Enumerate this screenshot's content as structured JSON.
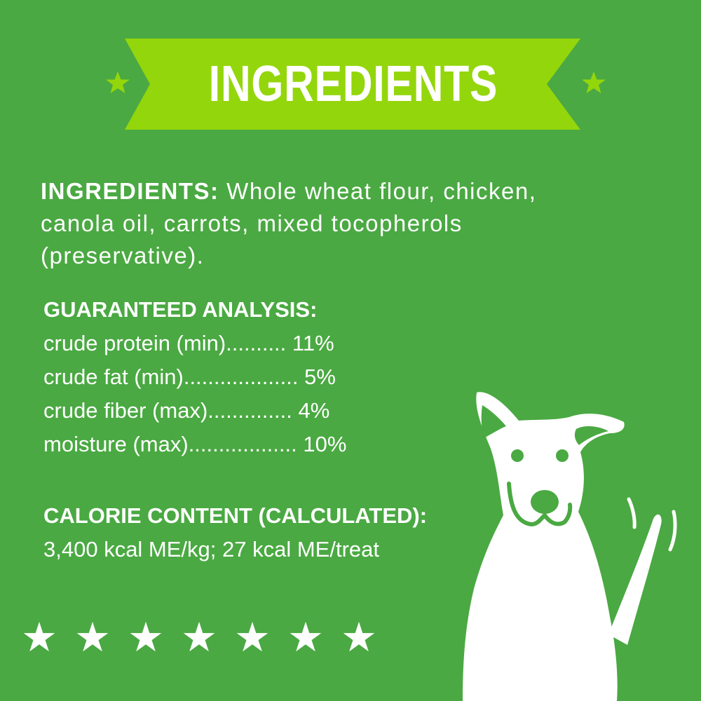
{
  "colors": {
    "background": "#4aa942",
    "banner": "#94d60c",
    "text": "#ffffff"
  },
  "banner": {
    "title": "INGREDIENTS",
    "icons": [
      "star-icon",
      "star-icon"
    ]
  },
  "ingredients": {
    "label": "INGREDIENTS:",
    "text": " Whole wheat flour, chicken, canola oil, carrots, mixed tocopherols (preservative)."
  },
  "analysis": {
    "heading": "GUARANTEED ANALYSIS:",
    "rows": [
      "crude protein (min).......... 11%",
      "crude fat (min)................... 5%",
      "crude fiber (max).............. 4%",
      "moisture (max).................. 10%"
    ]
  },
  "calorie": {
    "heading": "CALORIE CONTENT (CALCULATED):",
    "text": "3,400 kcal ME/kg; 27 kcal ME/treat"
  },
  "stars": {
    "count": 7,
    "glyph": "★"
  },
  "illustration": "dog-icon"
}
